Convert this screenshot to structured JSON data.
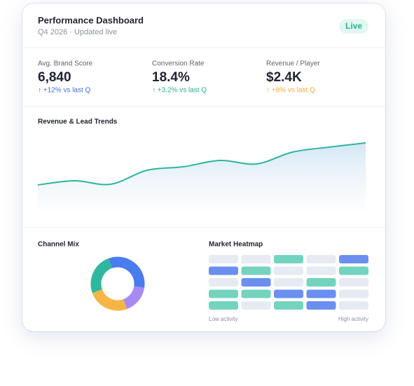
{
  "header": {
    "title": "Performance Dashboard",
    "subtitle": "Q4 2026 · Updated live",
    "badge": "Live"
  },
  "kpis": [
    {
      "label": "Avg. Brand Score",
      "value": "6,840",
      "delta": "↑ +12% vs last Q",
      "color": "#3b6fe0"
    },
    {
      "label": "Conversion Rate",
      "value": "18.4%",
      "delta": "↑ +3.2% vs last Q",
      "color": "#25b394"
    },
    {
      "label": "Revenue / Player",
      "value": "$2.4K",
      "delta": "↑ +8% vs last Q",
      "color": "#f5a83a"
    }
  ],
  "trend": {
    "title": "Revenue & Lead Trends",
    "values": [
      36,
      42,
      37,
      57,
      62,
      71,
      66,
      83,
      90,
      96
    ],
    "ylim": [
      0,
      100
    ],
    "color": "#2bb5a0"
  },
  "channel_mix": {
    "title": "Channel Mix",
    "values": [
      33,
      17,
      25,
      25
    ],
    "colors": [
      "#4a7cf0",
      "#a98af5",
      "#f7b547",
      "#2fb89f"
    ]
  },
  "heatmap": {
    "title": "Market Heatmap",
    "levels": [
      [
        0,
        0,
        1,
        0,
        2
      ],
      [
        2,
        1,
        0,
        0,
        1
      ],
      [
        0,
        2,
        0,
        1,
        0
      ],
      [
        1,
        1,
        2,
        2,
        0
      ],
      [
        1,
        0,
        1,
        2,
        0
      ]
    ],
    "colors": [
      "#e6eaf2",
      "#74d3bf",
      "#6a8ff0"
    ],
    "low_label": "Low activity",
    "high_label": "High activity"
  }
}
